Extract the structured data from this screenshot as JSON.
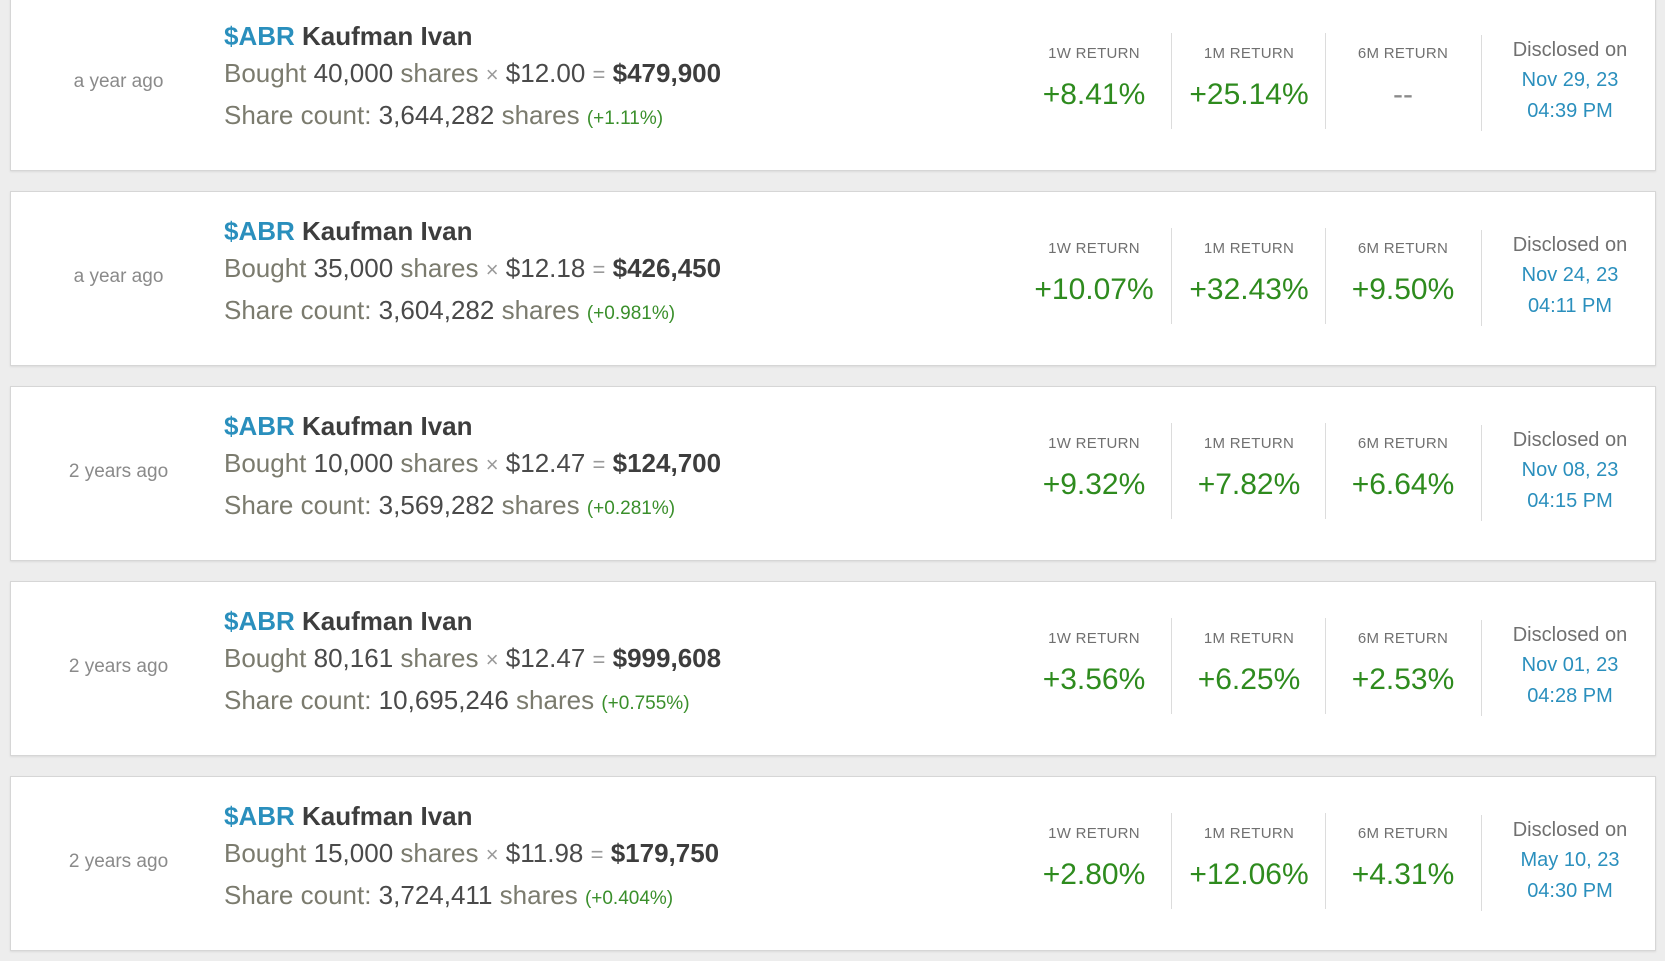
{
  "labels": {
    "return_1w": "1W RETURN",
    "return_1m": "1M RETURN",
    "return_6m": "6M RETURN",
    "disclosed": "Disclosed on",
    "bought": "Bought",
    "shares": "shares",
    "share_count": "Share count:",
    "times": "×",
    "equals": "="
  },
  "colors": {
    "ticker": "#2a8fbd",
    "positive": "#2e8b1e",
    "muted": "#7b7b6e"
  },
  "transactions": [
    {
      "time_ago": "a year ago",
      "ticker": "$ABR",
      "insider": "Kaufman Ivan",
      "action": "Bought",
      "quantity": "40,000",
      "price": "$12.00",
      "total": "$479,900",
      "share_count": "3,644,282",
      "share_change": "(+1.11%)",
      "return_1w": "+8.41%",
      "return_1m": "+25.14%",
      "return_6m": "--",
      "disclosed_date": "Nov 29, 23",
      "disclosed_time": "04:39 PM"
    },
    {
      "time_ago": "a year ago",
      "ticker": "$ABR",
      "insider": "Kaufman Ivan",
      "action": "Bought",
      "quantity": "35,000",
      "price": "$12.18",
      "total": "$426,450",
      "share_count": "3,604,282",
      "share_change": "(+0.981%)",
      "return_1w": "+10.07%",
      "return_1m": "+32.43%",
      "return_6m": "+9.50%",
      "disclosed_date": "Nov 24, 23",
      "disclosed_time": "04:11 PM"
    },
    {
      "time_ago": "2 years ago",
      "ticker": "$ABR",
      "insider": "Kaufman Ivan",
      "action": "Bought",
      "quantity": "10,000",
      "price": "$12.47",
      "total": "$124,700",
      "share_count": "3,569,282",
      "share_change": "(+0.281%)",
      "return_1w": "+9.32%",
      "return_1m": "+7.82%",
      "return_6m": "+6.64%",
      "disclosed_date": "Nov 08, 23",
      "disclosed_time": "04:15 PM"
    },
    {
      "time_ago": "2 years ago",
      "ticker": "$ABR",
      "insider": "Kaufman Ivan",
      "action": "Bought",
      "quantity": "80,161",
      "price": "$12.47",
      "total": "$999,608",
      "share_count": "10,695,246",
      "share_change": "(+0.755%)",
      "return_1w": "+3.56%",
      "return_1m": "+6.25%",
      "return_6m": "+2.53%",
      "disclosed_date": "Nov 01, 23",
      "disclosed_time": "04:28 PM"
    },
    {
      "time_ago": "2 years ago",
      "ticker": "$ABR",
      "insider": "Kaufman Ivan",
      "action": "Bought",
      "quantity": "15,000",
      "price": "$11.98",
      "total": "$179,750",
      "share_count": "3,724,411",
      "share_change": "(+0.404%)",
      "return_1w": "+2.80%",
      "return_1m": "+12.06%",
      "return_6m": "+4.31%",
      "disclosed_date": "May 10, 23",
      "disclosed_time": "04:30 PM"
    }
  ]
}
